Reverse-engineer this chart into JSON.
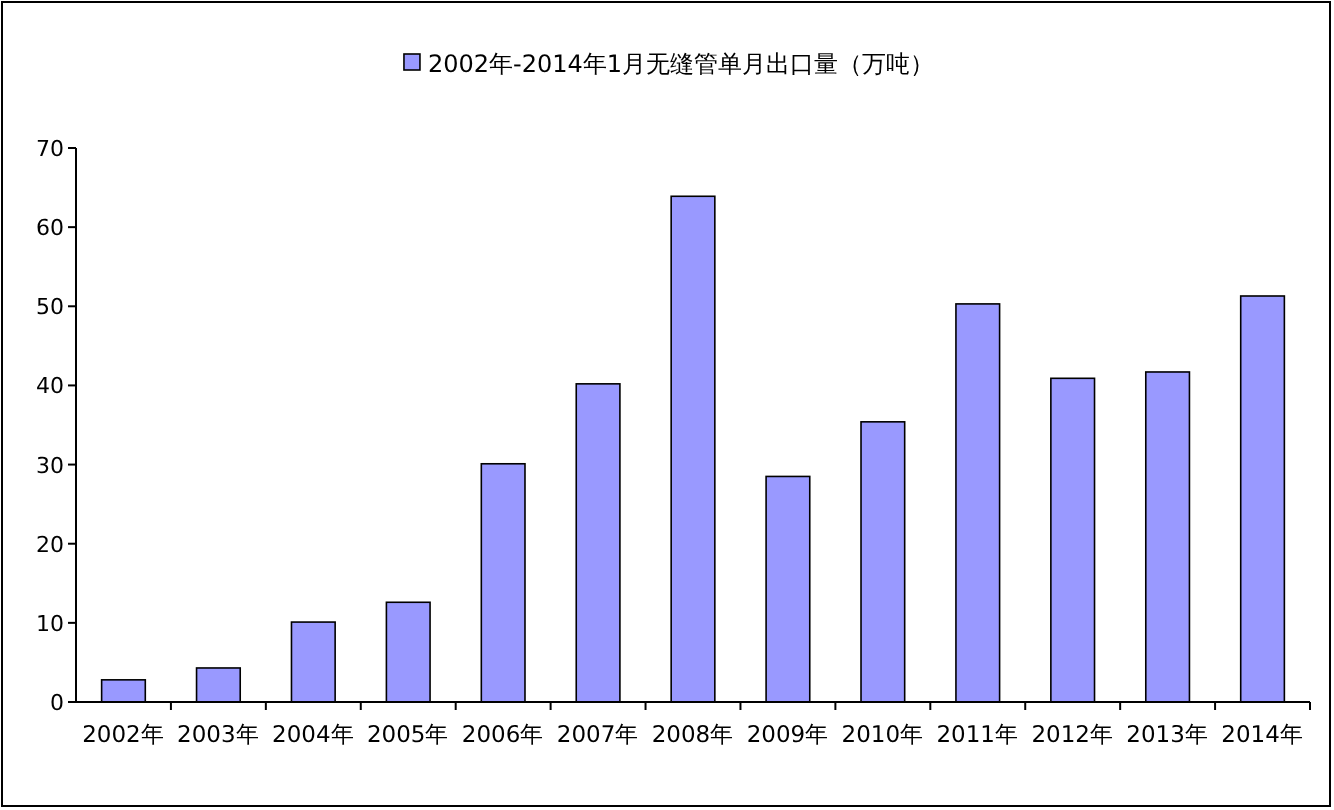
{
  "chart_data": {
    "type": "bar",
    "categories": [
      "2002年",
      "2003年",
      "2004年",
      "2005年",
      "2006年",
      "2007年",
      "2008年",
      "2009年",
      "2010年",
      "2011年",
      "2012年",
      "2013年",
      "2014年"
    ],
    "series": [
      {
        "name": "2002年-2014年1月无缝管单月出口量（万吨）",
        "color": "#9999ff",
        "values": [
          2.8,
          4.3,
          10.1,
          12.6,
          30.1,
          40.2,
          63.9,
          28.5,
          35.4,
          50.3,
          40.9,
          41.7,
          51.3
        ]
      }
    ],
    "ylim": [
      0,
      70
    ],
    "yticks": [
      0,
      10,
      20,
      30,
      40,
      50,
      60,
      70
    ],
    "grid": false,
    "legend": "top"
  }
}
